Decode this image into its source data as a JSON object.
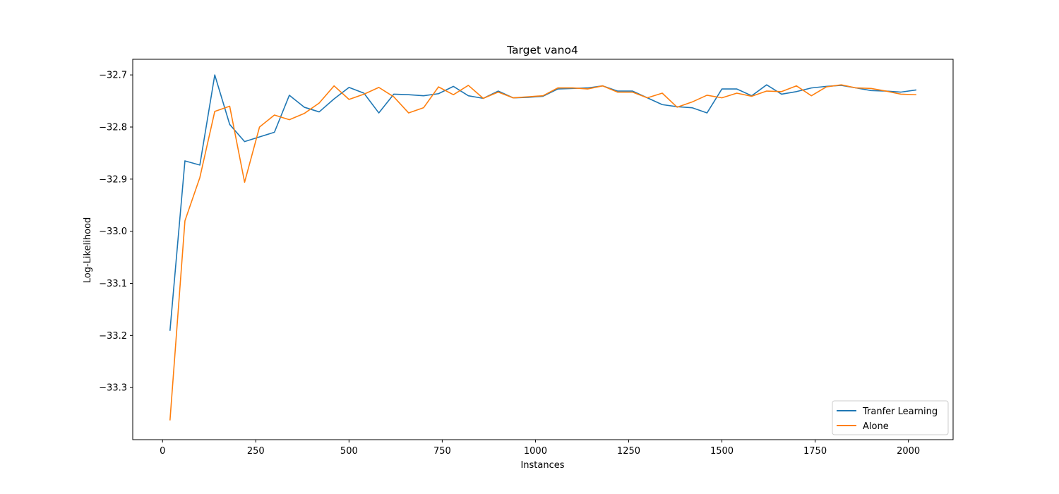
{
  "chart_data": {
    "type": "line",
    "title": "Target vano4",
    "xlabel": "Instances",
    "ylabel": "Log-Likelihood",
    "xlim": [
      -80,
      2120
    ],
    "ylim": [
      -33.4,
      -32.67
    ],
    "xticks": [
      0,
      250,
      500,
      750,
      1000,
      1250,
      1500,
      1750,
      2000
    ],
    "yticks": [
      -33.3,
      -33.2,
      -33.1,
      -33.0,
      -32.9,
      -32.8,
      -32.7
    ],
    "xtick_labels": [
      "0",
      "250",
      "500",
      "750",
      "1000",
      "1250",
      "1500",
      "1750",
      "2000"
    ],
    "ytick_labels": [
      "−33.3",
      "−33.2",
      "−33.1",
      "−33.0",
      "−32.9",
      "−32.8",
      "−32.7"
    ],
    "grid": false,
    "legend_position": "lower-right",
    "x": [
      20,
      60,
      100,
      140,
      180,
      220,
      260,
      300,
      340,
      380,
      420,
      460,
      500,
      540,
      580,
      620,
      660,
      700,
      740,
      780,
      820,
      860,
      900,
      940,
      980,
      1020,
      1060,
      1100,
      1140,
      1180,
      1220,
      1260,
      1300,
      1340,
      1380,
      1420,
      1460,
      1500,
      1540,
      1580,
      1620,
      1660,
      1700,
      1740,
      1780,
      1820,
      1860,
      1900,
      1940,
      1980,
      2020
    ],
    "series": [
      {
        "name": "Tranfer Learning",
        "color": "#1f77b4",
        "values": [
          -33.19,
          -32.865,
          -32.873,
          -32.7,
          -32.795,
          -32.828,
          -32.819,
          -32.81,
          -32.739,
          -32.762,
          -32.771,
          -32.746,
          -32.724,
          -32.735,
          -32.773,
          -32.737,
          -32.738,
          -32.74,
          -32.736,
          -32.722,
          -32.74,
          -32.745,
          -32.731,
          -32.744,
          -32.743,
          -32.741,
          -32.727,
          -32.726,
          -32.725,
          -32.721,
          -32.731,
          -32.731,
          -32.744,
          -32.757,
          -32.761,
          -32.763,
          -32.773,
          -32.727,
          -32.727,
          -32.74,
          -32.719,
          -32.737,
          -32.732,
          -32.725,
          -32.722,
          -32.72,
          -32.725,
          -32.73,
          -32.731,
          -32.733,
          -32.729
        ]
      },
      {
        "name": "Alone",
        "color": "#ff7f0e",
        "values": [
          -33.362,
          -32.98,
          -32.897,
          -32.77,
          -32.76,
          -32.906,
          -32.8,
          -32.777,
          -32.786,
          -32.774,
          -32.754,
          -32.721,
          -32.747,
          -32.737,
          -32.724,
          -32.742,
          -32.773,
          -32.763,
          -32.723,
          -32.738,
          -32.72,
          -32.745,
          -32.733,
          -32.744,
          -32.742,
          -32.74,
          -32.725,
          -32.725,
          -32.727,
          -32.721,
          -32.733,
          -32.733,
          -32.744,
          -32.735,
          -32.762,
          -32.752,
          -32.739,
          -32.744,
          -32.735,
          -32.741,
          -32.731,
          -32.732,
          -32.721,
          -32.74,
          -32.723,
          -32.719,
          -32.725,
          -32.726,
          -32.731,
          -32.737,
          -32.738
        ]
      }
    ]
  }
}
